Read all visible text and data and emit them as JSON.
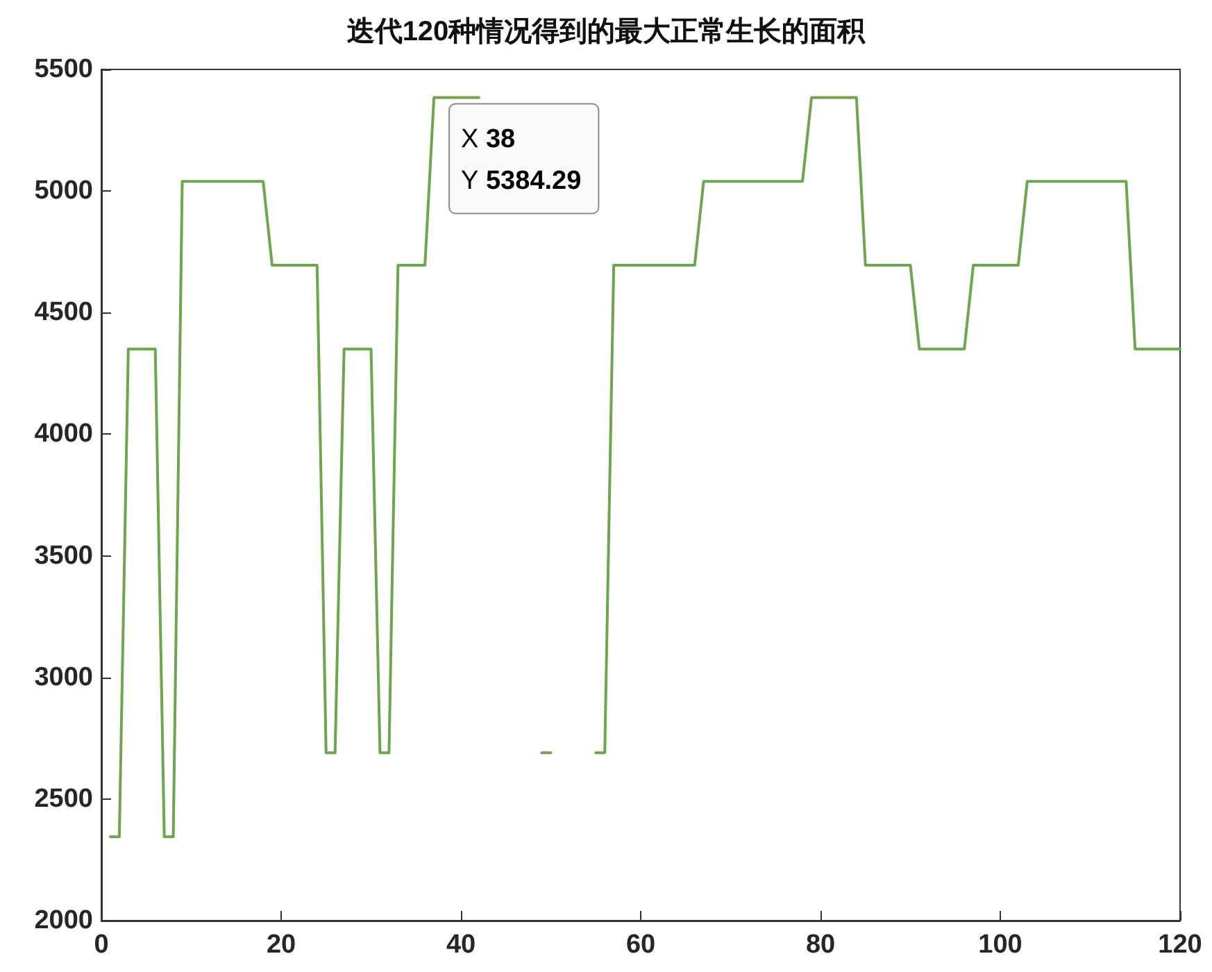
{
  "chart_data": {
    "type": "line",
    "title": "迭代120种情况得到的最大正常生长的面积",
    "x": [
      1,
      2,
      3,
      4,
      5,
      6,
      7,
      8,
      9,
      10,
      11,
      12,
      13,
      14,
      15,
      16,
      17,
      18,
      19,
      20,
      21,
      22,
      23,
      24,
      25,
      26,
      27,
      28,
      29,
      30,
      31,
      32,
      33,
      34,
      35,
      36,
      37,
      38,
      39,
      40,
      41,
      42,
      43,
      44,
      45,
      46,
      47,
      48,
      49,
      50,
      51,
      52,
      53,
      54,
      55,
      56,
      57,
      58,
      59,
      60,
      61,
      62,
      63,
      64,
      65,
      66,
      67,
      68,
      69,
      70,
      71,
      72,
      73,
      74,
      75,
      76,
      77,
      78,
      79,
      80,
      81,
      82,
      83,
      84,
      85,
      86,
      87,
      88,
      89,
      90,
      91,
      92,
      93,
      94,
      95,
      96,
      97,
      98,
      99,
      100,
      101,
      102,
      103,
      104,
      105,
      106,
      107,
      108,
      109,
      110,
      111,
      112,
      113,
      114,
      115,
      116,
      117,
      118,
      119,
      120
    ],
    "series": [
      {
        "color": "#6ea64f",
        "values": [
          2345,
          2345,
          4350,
          4350,
          4350,
          4350,
          2345,
          2345,
          5040,
          5040,
          5040,
          5040,
          5040,
          5040,
          5040,
          5040,
          5040,
          5040,
          4695,
          4695,
          4695,
          4695,
          4695,
          4695,
          2690,
          2690,
          4350,
          4350,
          4350,
          4350,
          2690,
          2690,
          4695,
          4695,
          4695,
          4695,
          5384.29,
          5384.29,
          5384.29,
          5384.29,
          5384.29,
          5384.29,
          null,
          null,
          null,
          null,
          null,
          null,
          2690,
          2690,
          null,
          null,
          null,
          null,
          2690,
          2690,
          4695,
          4695,
          4695,
          4695,
          4695,
          4695,
          4695,
          4695,
          4695,
          4695,
          5040,
          5040,
          5040,
          5040,
          5040,
          5040,
          5040,
          5040,
          5040,
          5040,
          5040,
          5040,
          5384.29,
          5384.29,
          5384.29,
          5384.29,
          5384.29,
          5384.29,
          4695,
          4695,
          4695,
          4695,
          4695,
          4695,
          4350,
          4350,
          4350,
          4350,
          4350,
          4350,
          4695,
          4695,
          4695,
          4695,
          4695,
          4695,
          5040,
          5040,
          5040,
          5040,
          5040,
          5040,
          5040,
          5040,
          5040,
          5040,
          5040,
          5040,
          4350,
          4350,
          4350,
          4350,
          4350,
          4350
        ]
      }
    ],
    "xlim": [
      0,
      120
    ],
    "xticks": [
      0,
      20,
      40,
      60,
      80,
      100,
      120
    ],
    "ylim": [
      2000,
      5500
    ],
    "yticks": [
      2000,
      2500,
      3000,
      3500,
      4000,
      4500,
      5000,
      5500
    ],
    "marker": "none",
    "line_style": "solid",
    "annotations": [
      {
        "text": "X 38\nY 5384.29",
        "x": 38,
        "y": 5384.29
      }
    ]
  }
}
